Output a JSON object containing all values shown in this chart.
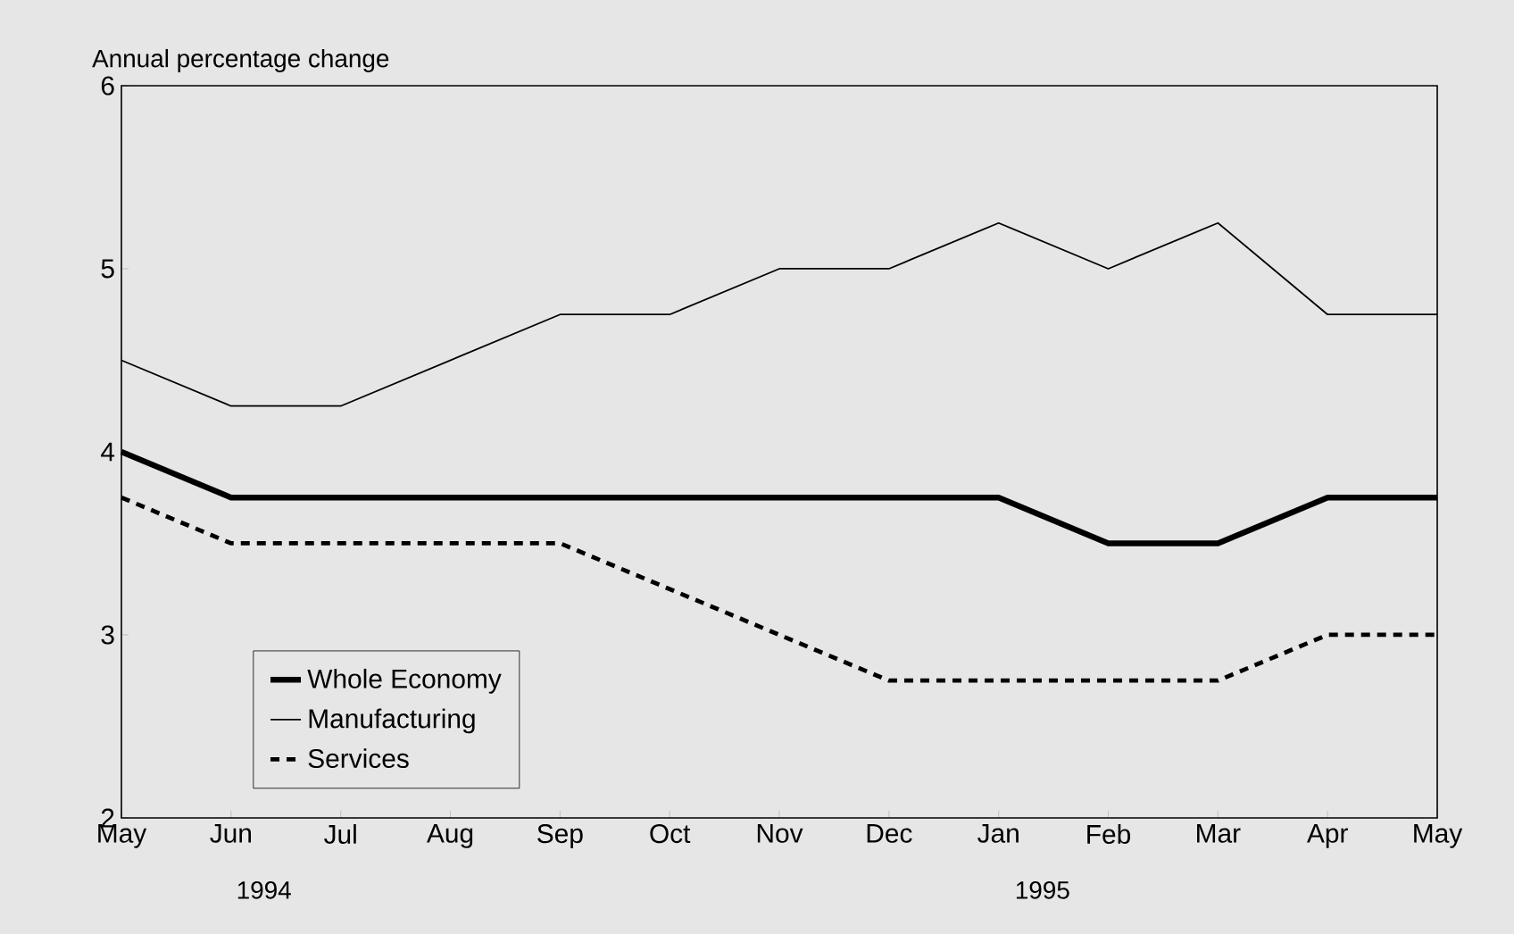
{
  "chart_data": {
    "type": "line",
    "ylabel": "Annual percentage change",
    "categories": [
      "May",
      "Jun",
      "Jul",
      "Aug",
      "Sep",
      "Oct",
      "Nov",
      "Dec",
      "Jan",
      "Feb",
      "Mar",
      "Apr",
      "May"
    ],
    "series": [
      {
        "name": "Whole Economy",
        "color": "#000000",
        "line_style": "solid",
        "values": [
          4.0,
          3.75,
          3.75,
          3.75,
          3.75,
          3.75,
          3.75,
          3.75,
          3.75,
          3.5,
          3.5,
          3.75,
          3.75
        ]
      },
      {
        "name": "Manufacturing",
        "color": "#000000",
        "line_style": "solid",
        "values": [
          4.5,
          4.25,
          4.25,
          4.5,
          4.75,
          4.75,
          5.0,
          5.0,
          5.25,
          5.0,
          5.25,
          4.75,
          4.75
        ]
      },
      {
        "name": "Services",
        "color": "#000000",
        "line_style": "dashed",
        "values": [
          3.75,
          3.5,
          3.5,
          3.5,
          3.5,
          3.25,
          3.0,
          2.75,
          2.75,
          2.75,
          2.75,
          3.0,
          3.0
        ]
      }
    ],
    "ylim": [
      2,
      6
    ],
    "yticks": [
      2,
      3,
      4,
      5,
      6
    ],
    "annotations": [
      "1994",
      "1995"
    ],
    "legend": "bottom left",
    "marker": "none",
    "grid": false
  }
}
